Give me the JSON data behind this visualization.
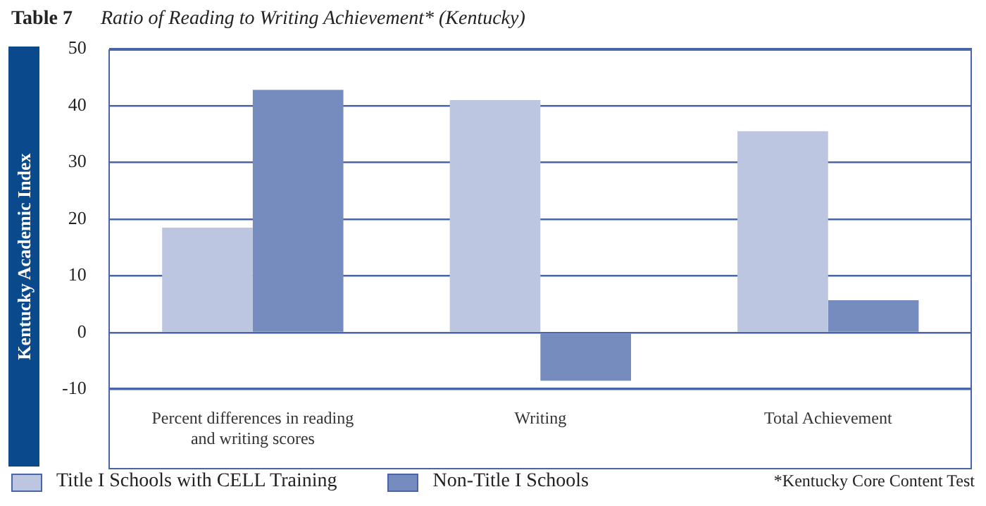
{
  "chart_data": {
    "type": "bar",
    "title": "Ratio of Reading to Writing Achievement* (Kentucky)",
    "ylabel": "Kentucky Academic Index",
    "annotations": [
      "Table 7",
      "*Kentucky Core Content Test"
    ],
    "categories": [
      "Percent differences in reading and writing scores",
      "Writing",
      "Total Achievement"
    ],
    "series": [
      {
        "name": "Title I Schools with CELL Training",
        "color": "#bcc6e0",
        "values": [
          18.5,
          41,
          35.5
        ]
      },
      {
        "name": "Non-Title I Schools",
        "color": "#768cbe",
        "values": [
          42.8,
          -8.5,
          5.7
        ]
      }
    ],
    "ylim": [
      -10,
      50
    ],
    "yticks": [
      -10,
      0,
      10,
      20,
      30,
      40,
      50
    ],
    "grid": "y",
    "legend": "bottom left"
  }
}
